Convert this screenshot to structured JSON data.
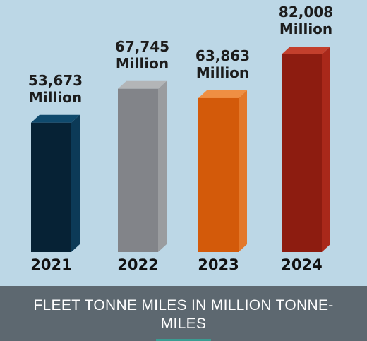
{
  "chart_data": {
    "type": "bar",
    "title": "FLEET TONNE MILES IN MILLION TONNE-MILES",
    "categories": [
      "2021",
      "2022",
      "2023",
      "2024"
    ],
    "values": [
      53673,
      67745,
      63863,
      82008
    ],
    "value_labels": [
      "53,673",
      "67,745",
      "63,863",
      "82,008"
    ],
    "unit_label": "Million",
    "colors": [
      {
        "front": "#062235",
        "side": "#0c3a57",
        "top": "#0f4a6d"
      },
      {
        "front": "#828489",
        "side": "#9a9c9f",
        "top": "#b3b5b7"
      },
      {
        "front": "#d35a0a",
        "side": "#e3782a",
        "top": "#ef8f43"
      },
      {
        "front": "#8d1c10",
        "side": "#a9281a",
        "top": "#c33f2c"
      }
    ],
    "legend": "none",
    "grid": false
  }
}
